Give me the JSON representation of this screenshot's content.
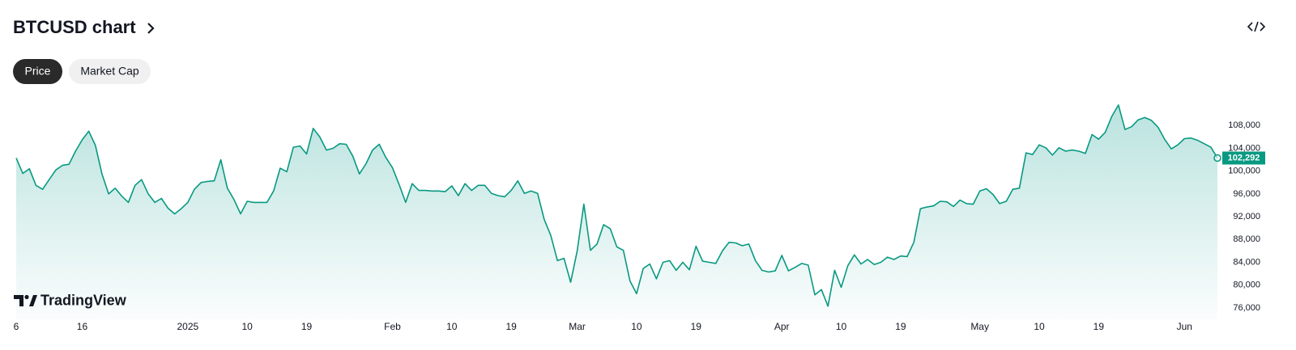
{
  "header": {
    "title": "BTCUSD chart"
  },
  "tabs": [
    "Price",
    "Market Cap"
  ],
  "branding": "TradingView",
  "chart_data": {
    "type": "area",
    "color": "#089981",
    "values": [
      102300,
      99600,
      100400,
      97500,
      96800,
      98500,
      100200,
      101000,
      101200,
      103500,
      105500,
      107000,
      104500,
      99500,
      96000,
      97000,
      95600,
      94500,
      97500,
      98500,
      96000,
      94500,
      95200,
      93500,
      92500,
      93400,
      94500,
      96800,
      98000,
      98200,
      98300,
      102000,
      97000,
      95000,
      92500,
      94700,
      94500,
      94500,
      94500,
      96500,
      100500,
      99900,
      104200,
      104400,
      103000,
      107500,
      106000,
      103700,
      104000,
      104800,
      104700,
      102600,
      99500,
      101300,
      103700,
      104700,
      102400,
      100600,
      97700,
      94500,
      97800,
      96600,
      96600,
      96500,
      96500,
      96400,
      97400,
      95700,
      97800,
      96600,
      97500,
      97500,
      96100,
      95700,
      95500,
      96600,
      98300,
      96100,
      96500,
      96100,
      91500,
      88700,
      84300,
      84700,
      80500,
      86000,
      94200,
      86100,
      87200,
      90600,
      89900,
      86700,
      86100,
      80700,
      78500,
      82900,
      83700,
      81100,
      84000,
      84300,
      82600,
      84000,
      82700,
      86800,
      84200,
      84000,
      83800,
      86000,
      87500,
      87400,
      86900,
      87200,
      84300,
      82600,
      82300,
      82500,
      85200,
      82500,
      83100,
      83800,
      83500,
      78300,
      79200,
      76300,
      82600,
      79600,
      83400,
      85300,
      83700,
      84500,
      83600,
      84000,
      84900,
      84500,
      85100,
      85000,
      87500,
      93400,
      93700,
      93900,
      94700,
      94600,
      93800,
      94900,
      94300,
      94200,
      96500,
      96900,
      95900,
      94300,
      94700,
      96800,
      97000,
      103200,
      102900,
      104600,
      104100,
      102800,
      104100,
      103500,
      103700,
      103500,
      103100,
      106400,
      105600,
      106800,
      109600,
      111600,
      107300,
      107800,
      109000,
      109400,
      108900,
      107700,
      105600,
      103900,
      104600,
      105700,
      105800,
      105400,
      104800,
      104200,
      102292
    ],
    "value_labels": [
      null,
      null,
      null,
      null,
      null,
      null,
      null,
      null,
      null,
      null,
      null,
      null,
      null,
      null,
      null,
      null,
      null,
      null,
      null,
      null,
      null,
      null,
      null,
      null,
      null,
      null,
      null,
      null,
      null,
      null,
      null,
      null,
      null,
      null,
      null,
      null,
      null,
      null,
      null,
      null,
      null,
      null,
      null,
      null,
      null,
      null,
      null,
      null,
      null,
      null,
      null,
      null,
      null,
      null,
      null,
      null,
      null,
      null,
      null,
      null,
      null,
      null,
      null,
      null,
      null,
      null,
      null,
      null,
      null,
      null,
      null,
      null,
      null,
      null,
      null,
      null,
      null,
      null,
      null,
      null,
      null,
      null,
      null,
      null,
      null,
      null,
      null,
      null,
      null,
      null,
      null,
      null,
      null,
      null,
      null,
      null,
      null,
      null,
      null,
      null,
      null,
      null,
      null,
      null,
      null,
      null,
      null,
      null,
      null,
      null,
      null,
      null,
      null,
      null,
      null,
      null,
      null,
      null,
      null,
      null,
      null,
      null,
      null,
      null,
      null,
      null,
      null,
      null,
      null,
      null,
      null,
      null,
      null,
      null,
      null,
      null,
      null,
      null,
      null,
      null,
      null,
      null,
      null,
      null,
      null,
      null,
      null,
      null,
      null,
      null,
      null,
      null,
      null,
      null,
      null,
      null,
      null,
      null,
      null,
      null,
      null,
      null,
      null,
      null,
      null,
      null,
      null,
      null,
      null,
      null,
      null,
      null,
      null,
      null,
      null,
      null,
      null,
      null,
      null,
      null,
      null,
      null,
      "102,292"
    ],
    "xlim": [
      0,
      182
    ],
    "xticks": [
      {
        "value": 0,
        "label": "6"
      },
      {
        "value": 10,
        "label": "16"
      },
      {
        "value": 26,
        "label": "2025"
      },
      {
        "value": 35,
        "label": "10"
      },
      {
        "value": 44,
        "label": "19"
      },
      {
        "value": 57,
        "label": "Feb"
      },
      {
        "value": 66,
        "label": "10"
      },
      {
        "value": 75,
        "label": "19"
      },
      {
        "value": 85,
        "label": "Mar"
      },
      {
        "value": 94,
        "label": "10"
      },
      {
        "value": 103,
        "label": "19"
      },
      {
        "value": 116,
        "label": "Apr"
      },
      {
        "value": 125,
        "label": "10"
      },
      {
        "value": 134,
        "label": "19"
      },
      {
        "value": 146,
        "label": "May"
      },
      {
        "value": 155,
        "label": "10"
      },
      {
        "value": 164,
        "label": "19"
      },
      {
        "value": 177,
        "label": "Jun"
      }
    ],
    "ylim": [
      74000,
      113000
    ],
    "yticks": [
      {
        "value": 76000,
        "label": "76,000"
      },
      {
        "value": 80000,
        "label": "80,000"
      },
      {
        "value": 84000,
        "label": "84,000"
      },
      {
        "value": 88000,
        "label": "88,000"
      },
      {
        "value": 92000,
        "label": "92,000"
      },
      {
        "value": 96000,
        "label": "96,000"
      },
      {
        "value": 100000,
        "label": "100,000"
      },
      {
        "value": 104000,
        "label": "104,000"
      },
      {
        "value": 108000,
        "label": "108,000"
      }
    ],
    "grid": false
  }
}
